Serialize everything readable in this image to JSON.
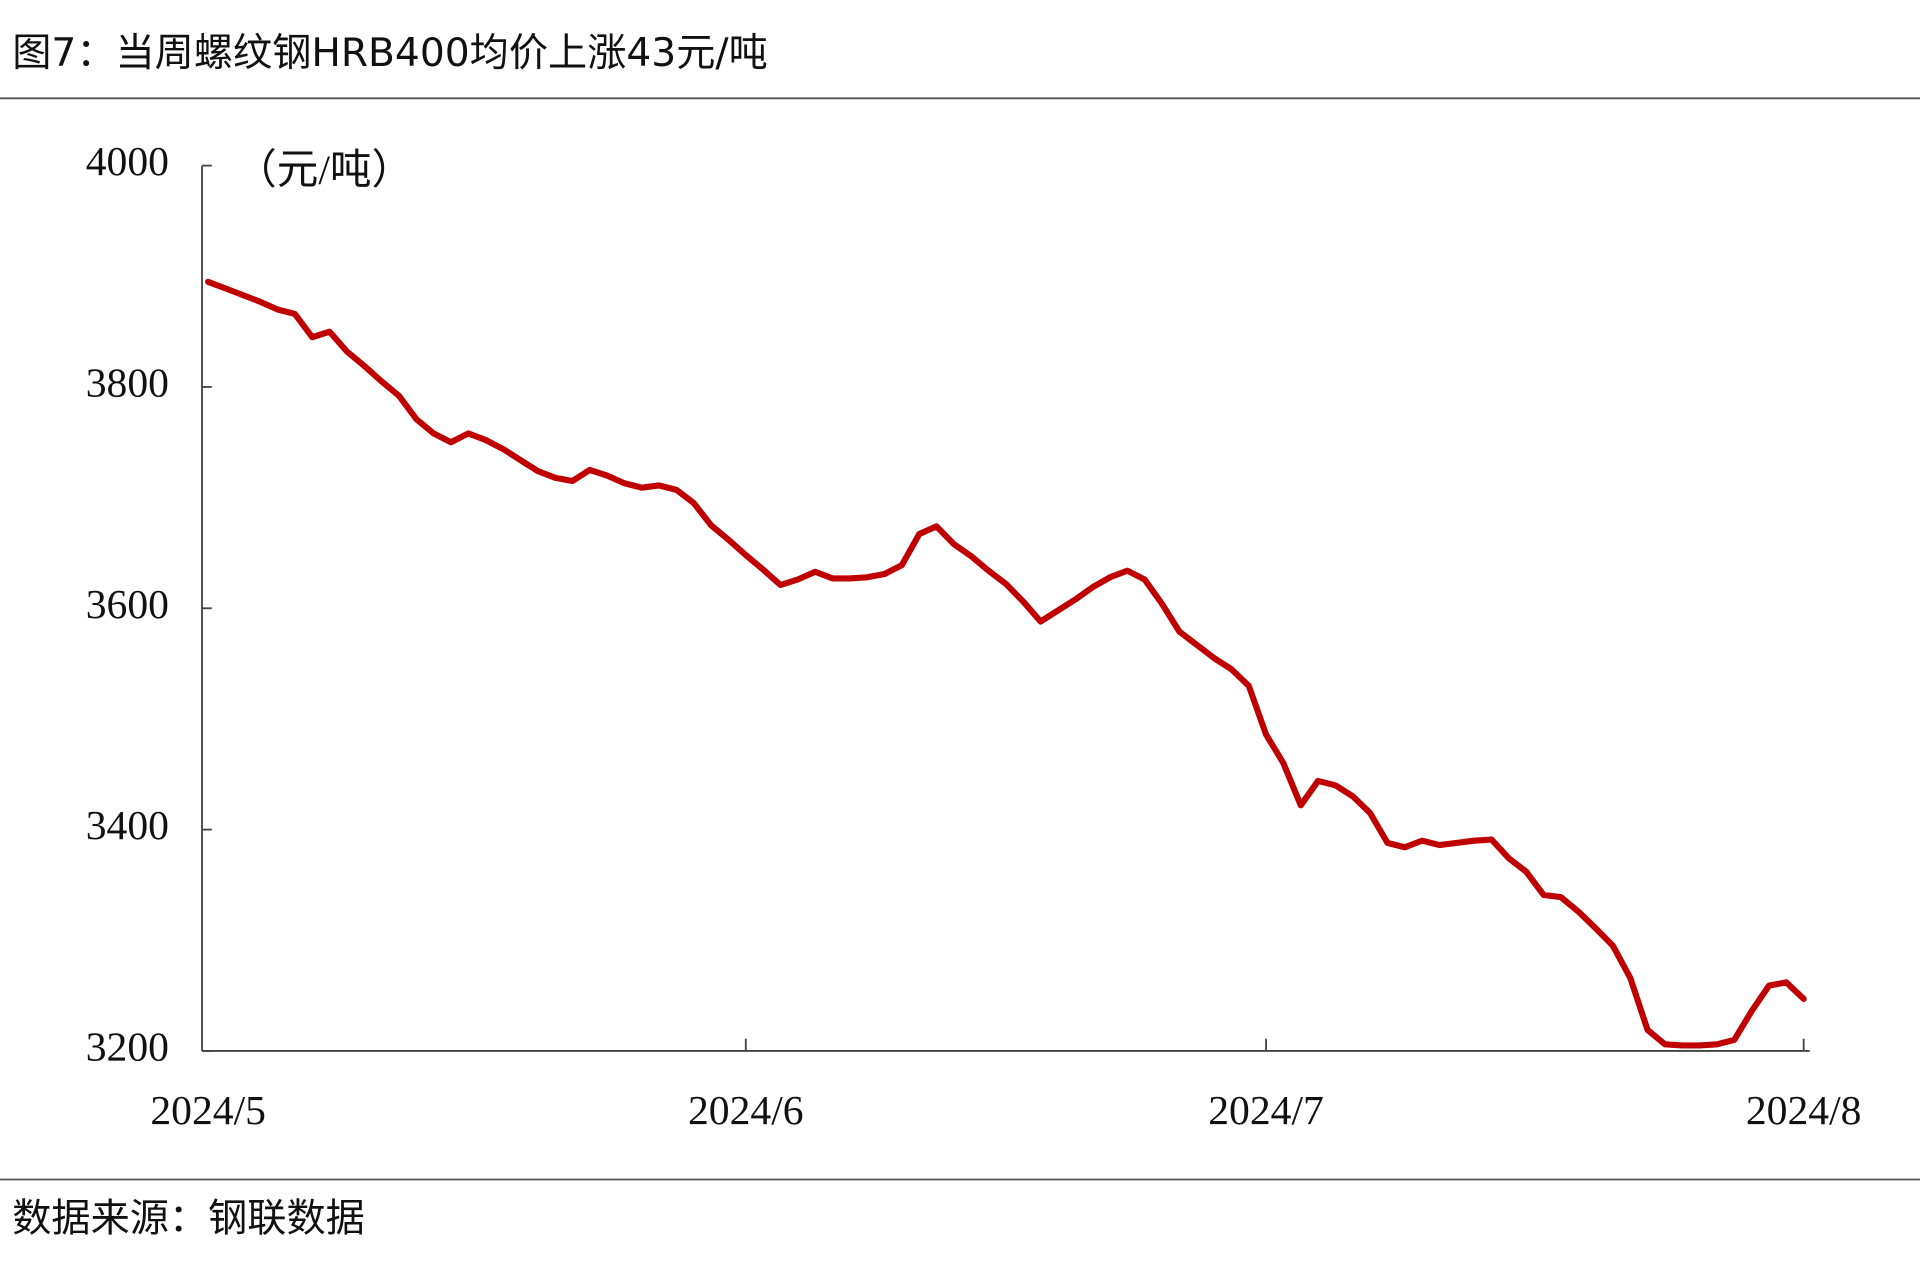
{
  "chart_data": {
    "type": "line",
    "title": "图7：当周螺纹钢HRB400均价上涨43元/吨",
    "y_label": "（元/吨）",
    "source": "数据来源：钢联数据",
    "color": "#c00000",
    "ylim": [
      3200,
      4000
    ],
    "yticks": [
      3200,
      3400,
      3600,
      3800,
      4000
    ],
    "categories": [
      "2024/5",
      null,
      null,
      null,
      null,
      null,
      null,
      null,
      null,
      null,
      null,
      null,
      null,
      null,
      null,
      null,
      null,
      null,
      null,
      null,
      null,
      null,
      null,
      null,
      null,
      null,
      null,
      null,
      null,
      null,
      null,
      "2024/6",
      null,
      null,
      null,
      null,
      null,
      null,
      null,
      null,
      null,
      null,
      null,
      null,
      null,
      null,
      null,
      null,
      null,
      null,
      null,
      null,
      null,
      null,
      null,
      null,
      null,
      null,
      null,
      null,
      null,
      "2024/7",
      null,
      null,
      null,
      null,
      null,
      null,
      null,
      null,
      null,
      null,
      null,
      null,
      null,
      null,
      null,
      null,
      null,
      null,
      null,
      null,
      null,
      null,
      null,
      null,
      null,
      null,
      null,
      null,
      null,
      null,
      "2024/8"
    ],
    "values": [
      3895,
      3889,
      3883,
      3877,
      3870,
      3866,
      3845,
      3850,
      3832,
      3819,
      3805,
      3792,
      3771,
      3758,
      3750,
      3758,
      3752,
      3744,
      3734,
      3724,
      3718,
      3715,
      3725,
      3720,
      3713,
      3709,
      3711,
      3707,
      3695,
      3675,
      3662,
      3648,
      3635,
      3621,
      3626,
      3633,
      3627,
      3627,
      3628,
      3631,
      3639,
      3667,
      3674,
      3658,
      3647,
      3634,
      3622,
      3606,
      3588,
      3598,
      3608,
      3619,
      3628,
      3634,
      3626,
      3604,
      3579,
      3567,
      3555,
      3545,
      3530,
      3486,
      3460,
      3422,
      3444,
      3440,
      3430,
      3415,
      3388,
      3384,
      3390,
      3386,
      3388,
      3390,
      3391,
      3374,
      3362,
      3341,
      3339,
      3326,
      3311,
      3295,
      3266,
      3219,
      3206,
      3205,
      3205,
      3206,
      3210,
      3236,
      3259,
      3262,
      3247
    ]
  }
}
